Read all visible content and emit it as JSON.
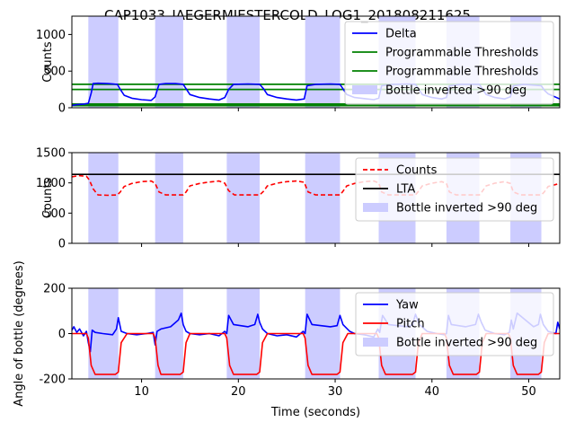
{
  "figure": {
    "title": "CAP1033_JAEGERMIESTERCOLD_LOG1_201808211625"
  },
  "chart_data": [
    {
      "type": "line",
      "ylabel": "Counts",
      "xlim": [
        2.8,
        53.2
      ],
      "ylim": [
        0,
        1250
      ],
      "yticks": [
        0,
        500,
        1000
      ],
      "grid": false,
      "legend_position": "upper-right",
      "legend": [
        {
          "label": "Delta",
          "kind": "line",
          "color": "#0000ff"
        },
        {
          "label": "Programmable Thresholds",
          "kind": "line",
          "color": "#008000"
        },
        {
          "label": "Programmable Thresholds",
          "kind": "line",
          "color": "#008000"
        },
        {
          "label": "Bottle inverted >90 deg",
          "kind": "patch",
          "color": "#ccccff"
        }
      ],
      "inverted_spans": [
        [
          4.5,
          7.6
        ],
        [
          11.4,
          14.3
        ],
        [
          18.8,
          22.2
        ],
        [
          26.9,
          30.5
        ],
        [
          34.5,
          38.3
        ],
        [
          41.5,
          44.9
        ],
        [
          48.1,
          51.3
        ]
      ],
      "thresholds": [
        {
          "name": "Programmable Thresholds",
          "color": "#008000",
          "value": 320
        },
        {
          "name": "Programmable Thresholds",
          "color": "#008000",
          "value": 250
        },
        {
          "name": "Programmable Thresholds",
          "color": "#008000",
          "value": 50
        },
        {
          "name": "Programmable Thresholds",
          "color": "#008000",
          "value": 30
        }
      ],
      "series": [
        {
          "name": "Delta",
          "color": "#0000ff",
          "x": [
            2.8,
            3.2,
            4.0,
            4.5,
            4.8,
            5.0,
            5.5,
            6.5,
            7.5,
            7.8,
            8.2,
            9.0,
            10.0,
            11.0,
            11.4,
            11.8,
            12.5,
            13.5,
            14.3,
            14.6,
            15.0,
            16.0,
            17.0,
            18.0,
            18.6,
            19.0,
            19.5,
            21.0,
            22.2,
            22.6,
            23.0,
            24.0,
            25.0,
            26.0,
            26.8,
            27.1,
            28.0,
            29.5,
            30.5,
            30.8,
            31.2,
            32.0,
            33.0,
            34.0,
            34.5,
            34.8,
            36.0,
            37.5,
            38.3,
            38.6,
            39.0,
            40.0,
            41.0,
            41.5,
            41.8,
            43.0,
            44.9,
            45.2,
            45.6,
            46.5,
            47.5,
            48.1,
            48.4,
            49.5,
            51.3,
            51.6,
            52.0,
            53.2
          ],
          "values": [
            30,
            40,
            50,
            60,
            200,
            330,
            335,
            330,
            320,
            250,
            170,
            130,
            110,
            100,
            150,
            320,
            330,
            330,
            320,
            260,
            180,
            140,
            120,
            105,
            140,
            250,
            320,
            325,
            320,
            260,
            180,
            140,
            120,
            105,
            120,
            300,
            320,
            325,
            320,
            260,
            180,
            140,
            125,
            110,
            130,
            300,
            320,
            325,
            320,
            260,
            180,
            140,
            120,
            140,
            300,
            320,
            320,
            260,
            180,
            140,
            120,
            150,
            300,
            320,
            300,
            240,
            190,
            120
          ]
        }
      ]
    },
    {
      "type": "line",
      "ylabel": "Counts",
      "xlim": [
        2.8,
        53.2
      ],
      "ylim": [
        0,
        1500
      ],
      "yticks": [
        0,
        500,
        1000,
        1500
      ],
      "grid": false,
      "legend_position": "upper-right",
      "legend": [
        {
          "label": "Counts",
          "kind": "dashed",
          "color": "#ff0000"
        },
        {
          "label": "LTA",
          "kind": "line",
          "color": "#000000"
        },
        {
          "label": "Bottle inverted >90 deg",
          "kind": "patch",
          "color": "#ccccff"
        }
      ],
      "inverted_spans": [
        [
          4.5,
          7.6
        ],
        [
          11.4,
          14.3
        ],
        [
          18.8,
          22.2
        ],
        [
          26.9,
          30.5
        ],
        [
          34.5,
          38.3
        ],
        [
          41.5,
          44.9
        ],
        [
          48.1,
          51.3
        ]
      ],
      "series": [
        {
          "name": "Counts",
          "color": "#ff0000",
          "dash": true,
          "x": [
            2.8,
            3.5,
            4.3,
            4.6,
            5.0,
            5.5,
            6.5,
            7.5,
            7.8,
            8.2,
            9.0,
            10.0,
            11.0,
            11.4,
            11.8,
            12.5,
            14.3,
            14.6,
            15.0,
            16.0,
            17.0,
            18.0,
            18.6,
            19.0,
            19.6,
            22.2,
            22.6,
            23.0,
            24.0,
            25.0,
            26.0,
            26.8,
            27.2,
            28.0,
            30.5,
            30.8,
            31.2,
            32.0,
            33.0,
            34.0,
            34.5,
            34.8,
            35.5,
            38.3,
            38.6,
            39.0,
            40.0,
            41.0,
            41.5,
            41.8,
            42.5,
            44.9,
            45.2,
            45.6,
            46.5,
            47.5,
            48.1,
            48.4,
            49.2,
            51.3,
            51.6,
            52.0,
            53.2
          ],
          "values": [
            1100,
            1120,
            1110,
            1050,
            900,
            800,
            795,
            800,
            850,
            940,
            990,
            1020,
            1030,
            990,
            850,
            800,
            800,
            850,
            950,
            990,
            1015,
            1030,
            995,
            870,
            800,
            800,
            860,
            950,
            995,
            1020,
            1030,
            1010,
            850,
            800,
            800,
            860,
            950,
            990,
            1020,
            1030,
            1000,
            850,
            800,
            800,
            860,
            950,
            995,
            1020,
            990,
            850,
            800,
            800,
            860,
            950,
            995,
            1020,
            990,
            850,
            800,
            800,
            850,
            940,
            990
          ]
        },
        {
          "name": "LTA",
          "color": "#000000",
          "x": [
            2.8,
            53.2
          ],
          "values": [
            1140,
            1140
          ]
        }
      ]
    },
    {
      "type": "line",
      "ylabel": "Angle of bottle (degrees)",
      "xlabel": "Time (seconds)",
      "xlim": [
        2.8,
        53.2
      ],
      "ylim": [
        -200,
        200
      ],
      "yticks": [
        -200,
        0,
        200
      ],
      "xticks": [
        10,
        20,
        30,
        40,
        50
      ],
      "grid": false,
      "legend_position": "upper-right",
      "legend": [
        {
          "label": "Yaw",
          "kind": "line",
          "color": "#0000ff"
        },
        {
          "label": "Pitch",
          "kind": "line",
          "color": "#ff0000"
        },
        {
          "label": "Bottle inverted >90 deg",
          "kind": "patch",
          "color": "#ccccff"
        }
      ],
      "inverted_spans": [
        [
          4.5,
          7.6
        ],
        [
          11.4,
          14.3
        ],
        [
          18.8,
          22.2
        ],
        [
          26.9,
          30.5
        ],
        [
          34.5,
          38.3
        ],
        [
          41.5,
          44.9
        ],
        [
          48.1,
          51.3
        ]
      ],
      "series": [
        {
          "name": "Yaw",
          "color": "#0000ff",
          "x": [
            2.8,
            3.0,
            3.3,
            3.6,
            4.0,
            4.3,
            4.5,
            4.7,
            4.9,
            5.2,
            6.0,
            7.0,
            7.4,
            7.6,
            7.9,
            8.5,
            9.5,
            10.5,
            11.2,
            11.4,
            11.6,
            12.0,
            13.0,
            13.8,
            14.1,
            14.3,
            14.6,
            15.0,
            16.0,
            17.0,
            18.0,
            18.6,
            18.8,
            19.0,
            19.5,
            21.0,
            21.7,
            22.0,
            22.2,
            22.5,
            23.0,
            24.0,
            25.0,
            26.0,
            26.7,
            26.9,
            27.1,
            27.6,
            29.5,
            30.2,
            30.5,
            30.8,
            31.5,
            32.0,
            33.0,
            34.0,
            34.4,
            34.6,
            34.9,
            35.5,
            37.5,
            38.0,
            38.3,
            38.7,
            39.5,
            40.5,
            41.3,
            41.5,
            41.7,
            42.0,
            43.5,
            44.5,
            44.8,
            45.1,
            45.5,
            46.5,
            47.5,
            48.0,
            48.2,
            48.4,
            48.8,
            50.5,
            51.0,
            51.2,
            51.5,
            52.0,
            52.8,
            53.0,
            53.2
          ],
          "values": [
            15,
            30,
            5,
            20,
            -10,
            10,
            -40,
            -80,
            15,
            5,
            0,
            -5,
            20,
            70,
            10,
            0,
            -5,
            0,
            5,
            -50,
            10,
            20,
            30,
            60,
            90,
            40,
            10,
            0,
            -5,
            0,
            -10,
            10,
            0,
            80,
            40,
            30,
            40,
            85,
            50,
            20,
            0,
            -10,
            -5,
            -15,
            10,
            0,
            85,
            40,
            30,
            35,
            80,
            40,
            10,
            0,
            -5,
            -15,
            20,
            5,
            80,
            40,
            30,
            40,
            85,
            40,
            10,
            0,
            -5,
            0,
            80,
            40,
            30,
            40,
            85,
            50,
            15,
            0,
            -5,
            5,
            60,
            20,
            90,
            30,
            40,
            85,
            40,
            10,
            0,
            50,
            20
          ]
        },
        {
          "name": "Pitch",
          "color": "#ff0000",
          "x": [
            2.8,
            4.3,
            4.5,
            4.8,
            5.2,
            7.3,
            7.6,
            7.9,
            8.5,
            11.2,
            11.4,
            11.7,
            12.0,
            14.0,
            14.3,
            14.6,
            15.0,
            18.6,
            18.8,
            19.1,
            19.5,
            21.9,
            22.2,
            22.5,
            23.0,
            26.7,
            26.9,
            27.2,
            27.6,
            30.2,
            30.5,
            30.8,
            31.3,
            34.3,
            34.5,
            34.8,
            35.2,
            38.0,
            38.3,
            38.6,
            39.0,
            41.3,
            41.5,
            41.8,
            42.2,
            44.6,
            44.9,
            45.2,
            45.6,
            47.9,
            48.1,
            48.4,
            48.8,
            51.0,
            51.3,
            51.6,
            52.0,
            53.2
          ],
          "values": [
            0,
            0,
            -20,
            -140,
            -180,
            -180,
            -170,
            -40,
            0,
            0,
            -20,
            -140,
            -180,
            -180,
            -170,
            -40,
            0,
            0,
            -20,
            -140,
            -180,
            -180,
            -170,
            -40,
            0,
            0,
            -20,
            -140,
            -180,
            -180,
            -170,
            -40,
            0,
            0,
            -20,
            -140,
            -180,
            -180,
            -170,
            -40,
            0,
            0,
            -20,
            -140,
            -180,
            -180,
            -170,
            -40,
            0,
            0,
            -20,
            -140,
            -180,
            -180,
            -170,
            -40,
            0,
            0
          ]
        }
      ]
    }
  ]
}
